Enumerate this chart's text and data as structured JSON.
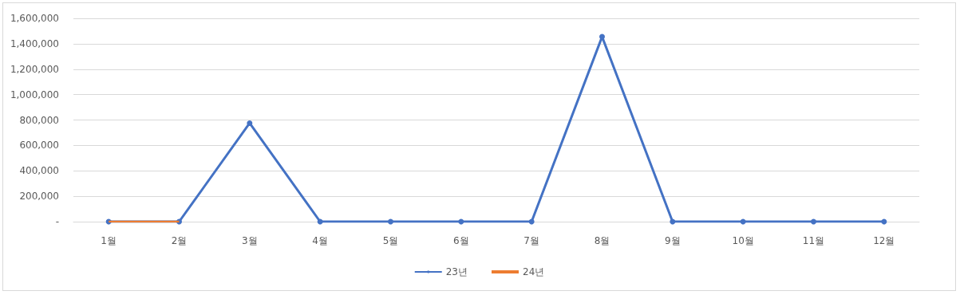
{
  "chart_data": {
    "type": "line",
    "categories": [
      "1월",
      "2월",
      "3월",
      "4월",
      "5월",
      "6월",
      "7월",
      "8월",
      "9월",
      "10월",
      "11월",
      "12월"
    ],
    "series": [
      {
        "name": "23년",
        "color": "#4472c4",
        "marker": "circle",
        "values": [
          0,
          0,
          775000,
          0,
          0,
          0,
          0,
          1455000,
          0,
          0,
          0,
          0
        ]
      },
      {
        "name": "24년",
        "color": "#ed7d31",
        "marker": "none",
        "values": [
          0,
          0,
          null,
          null,
          null,
          null,
          null,
          null,
          null,
          null,
          null,
          null
        ]
      }
    ],
    "ylim": [
      0,
      1600000
    ],
    "yticks": [
      {
        "value": 0,
        "label": "-"
      },
      {
        "value": 200000,
        "label": "200,000"
      },
      {
        "value": 400000,
        "label": "400,000"
      },
      {
        "value": 600000,
        "label": "600,000"
      },
      {
        "value": 800000,
        "label": "800,000"
      },
      {
        "value": 1000000,
        "label": "1,000,000"
      },
      {
        "value": 1200000,
        "label": "1,200,000"
      },
      {
        "value": 1400000,
        "label": "1,400,000"
      },
      {
        "value": 1600000,
        "label": "1,600,000"
      }
    ],
    "grid": "y",
    "legend": "bottom"
  }
}
